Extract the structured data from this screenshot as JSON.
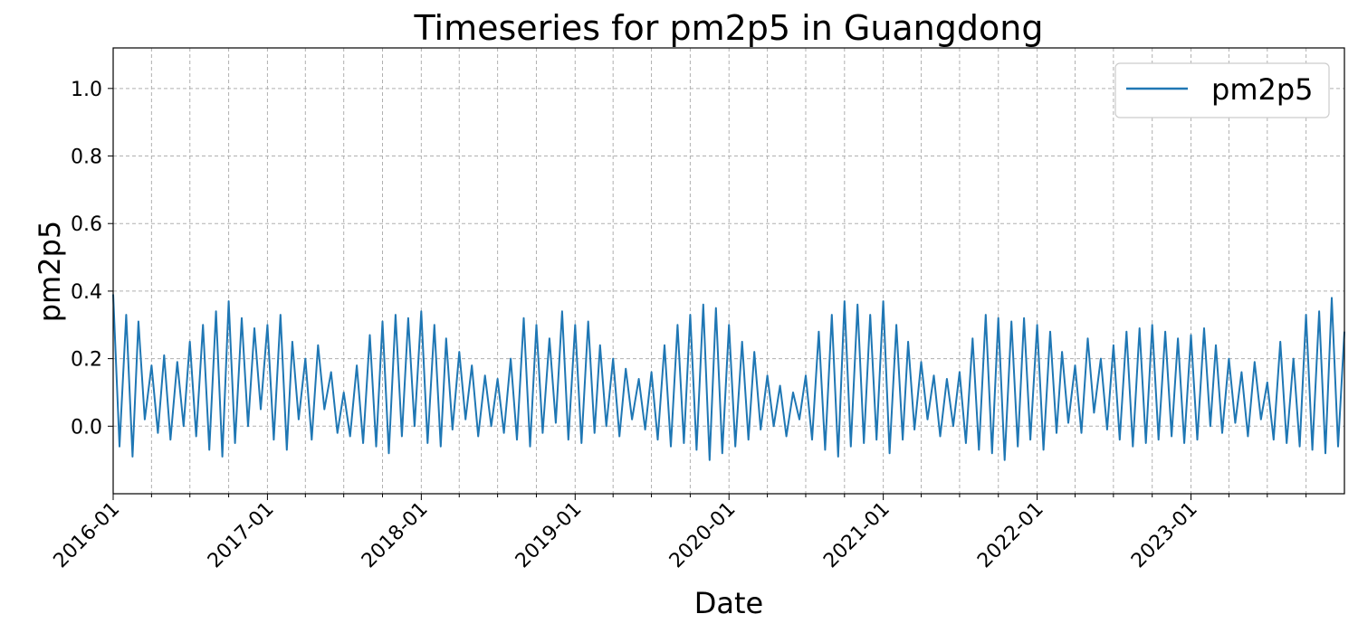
{
  "chart_data": {
    "type": "line",
    "title": "Timeseries for pm2p5 in Guangdong",
    "xlabel": "Date",
    "ylabel": "pm2p5",
    "xlim": [
      "2016-01-01",
      "2023-12-31"
    ],
    "ylim": [
      -0.2,
      1.12
    ],
    "x_ticks": [
      "2016-01",
      "2017-01",
      "2018-01",
      "2019-01",
      "2020-01",
      "2021-01",
      "2022-01",
      "2023-01"
    ],
    "y_ticks": [
      "0.0",
      "0.2",
      "0.4",
      "0.6",
      "0.8",
      "1.0"
    ],
    "y_tick_values": [
      0.0,
      0.2,
      0.4,
      0.6,
      0.8,
      1.0
    ],
    "grid": true,
    "legend": {
      "placement": "top-right",
      "entries": [
        "pm2p5"
      ]
    },
    "colors": {
      "series": "#1f77b4",
      "grid": "#b0b0b0",
      "axes": "#000000"
    },
    "series": [
      {
        "name": "pm2p5",
        "x": [
          "2016-01-01",
          "2016-01-16",
          "2016-02-01",
          "2016-02-16",
          "2016-03-01",
          "2016-03-16",
          "2016-04-01",
          "2016-04-16",
          "2016-05-01",
          "2016-05-16",
          "2016-06-01",
          "2016-06-16",
          "2016-07-01",
          "2016-07-16",
          "2016-08-01",
          "2016-08-16",
          "2016-09-01",
          "2016-09-16",
          "2016-10-01",
          "2016-10-16",
          "2016-11-01",
          "2016-11-16",
          "2016-12-01",
          "2016-12-16",
          "2017-01-01",
          "2017-01-16",
          "2017-02-01",
          "2017-02-16",
          "2017-03-01",
          "2017-03-16",
          "2017-04-01",
          "2017-04-16",
          "2017-05-01",
          "2017-05-16",
          "2017-06-01",
          "2017-06-16",
          "2017-07-01",
          "2017-07-16",
          "2017-08-01",
          "2017-08-16",
          "2017-09-01",
          "2017-09-16",
          "2017-10-01",
          "2017-10-16",
          "2017-11-01",
          "2017-11-16",
          "2017-12-01",
          "2017-12-16",
          "2018-01-01",
          "2018-01-16",
          "2018-02-01",
          "2018-02-16",
          "2018-03-01",
          "2018-03-16",
          "2018-04-01",
          "2018-04-16",
          "2018-05-01",
          "2018-05-16",
          "2018-06-01",
          "2018-06-16",
          "2018-07-01",
          "2018-07-16",
          "2018-08-01",
          "2018-08-16",
          "2018-09-01",
          "2018-09-16",
          "2018-10-01",
          "2018-10-16",
          "2018-11-01",
          "2018-11-16",
          "2018-12-01",
          "2018-12-16",
          "2019-01-01",
          "2019-01-16",
          "2019-02-01",
          "2019-02-16",
          "2019-03-01",
          "2019-03-16",
          "2019-04-01",
          "2019-04-16",
          "2019-05-01",
          "2019-05-16",
          "2019-06-01",
          "2019-06-16",
          "2019-07-01",
          "2019-07-16",
          "2019-08-01",
          "2019-08-16",
          "2019-09-01",
          "2019-09-16",
          "2019-10-01",
          "2019-10-16",
          "2019-11-01",
          "2019-11-16",
          "2019-12-01",
          "2019-12-16",
          "2020-01-01",
          "2020-01-16",
          "2020-02-01",
          "2020-02-16",
          "2020-03-01",
          "2020-03-16",
          "2020-04-01",
          "2020-04-16",
          "2020-05-01",
          "2020-05-16",
          "2020-06-01",
          "2020-06-16",
          "2020-07-01",
          "2020-07-16",
          "2020-08-01",
          "2020-08-16",
          "2020-09-01",
          "2020-09-16",
          "2020-10-01",
          "2020-10-16",
          "2020-11-01",
          "2020-11-16",
          "2020-12-01",
          "2020-12-16",
          "2021-01-01",
          "2021-01-16",
          "2021-02-01",
          "2021-02-16",
          "2021-03-01",
          "2021-03-16",
          "2021-04-01",
          "2021-04-16",
          "2021-05-01",
          "2021-05-16",
          "2021-06-01",
          "2021-06-16",
          "2021-07-01",
          "2021-07-16",
          "2021-08-01",
          "2021-08-16",
          "2021-09-01",
          "2021-09-16",
          "2021-10-01",
          "2021-10-16",
          "2021-11-01",
          "2021-11-16",
          "2021-12-01",
          "2021-12-16",
          "2022-01-01",
          "2022-01-16",
          "2022-02-01",
          "2022-02-16",
          "2022-03-01",
          "2022-03-16",
          "2022-04-01",
          "2022-04-16",
          "2022-05-01",
          "2022-05-16",
          "2022-06-01",
          "2022-06-16",
          "2022-07-01",
          "2022-07-16",
          "2022-08-01",
          "2022-08-16",
          "2022-09-01",
          "2022-09-16",
          "2022-10-01",
          "2022-10-16",
          "2022-11-01",
          "2022-11-16",
          "2022-12-01",
          "2022-12-16",
          "2023-01-01",
          "2023-01-16",
          "2023-02-01",
          "2023-02-16",
          "2023-03-01",
          "2023-03-16",
          "2023-04-01",
          "2023-04-16",
          "2023-05-01",
          "2023-05-16",
          "2023-06-01",
          "2023-06-16",
          "2023-07-01",
          "2023-07-16",
          "2023-08-01",
          "2023-08-16",
          "2023-09-01",
          "2023-09-16",
          "2023-10-01",
          "2023-10-16",
          "2023-11-01",
          "2023-11-16",
          "2023-12-01",
          "2023-12-16",
          "2023-12-31"
        ],
        "y": [
          0.39,
          -0.06,
          0.33,
          -0.09,
          0.31,
          0.02,
          0.18,
          -0.02,
          0.21,
          -0.04,
          0.19,
          0.0,
          0.25,
          -0.03,
          0.3,
          -0.07,
          0.34,
          -0.09,
          0.37,
          -0.05,
          0.32,
          0.0,
          0.29,
          0.05,
          0.3,
          -0.04,
          0.33,
          -0.07,
          0.25,
          0.02,
          0.2,
          -0.04,
          0.24,
          0.05,
          0.16,
          -0.02,
          0.1,
          -0.03,
          0.18,
          -0.05,
          0.27,
          -0.06,
          0.31,
          -0.08,
          0.33,
          -0.03,
          0.32,
          0.0,
          0.34,
          -0.05,
          0.3,
          -0.06,
          0.26,
          -0.01,
          0.22,
          0.02,
          0.18,
          -0.03,
          0.15,
          0.0,
          0.14,
          -0.02,
          0.2,
          -0.04,
          0.32,
          -0.06,
          0.3,
          -0.02,
          0.26,
          0.01,
          0.34,
          -0.04,
          0.3,
          -0.05,
          0.31,
          -0.02,
          0.24,
          0.0,
          0.2,
          -0.03,
          0.17,
          0.02,
          0.14,
          -0.01,
          0.16,
          -0.04,
          0.24,
          -0.06,
          0.3,
          -0.05,
          0.33,
          -0.07,
          0.36,
          -0.1,
          0.35,
          -0.08,
          0.3,
          -0.06,
          0.25,
          -0.04,
          0.22,
          -0.01,
          0.15,
          0.0,
          0.12,
          -0.03,
          0.1,
          0.02,
          0.15,
          -0.04,
          0.28,
          -0.07,
          0.33,
          -0.09,
          0.37,
          -0.06,
          0.36,
          -0.05,
          0.33,
          -0.04,
          0.37,
          -0.08,
          0.3,
          -0.04,
          0.25,
          -0.01,
          0.19,
          0.02,
          0.15,
          -0.03,
          0.14,
          0.0,
          0.16,
          -0.05,
          0.26,
          -0.07,
          0.33,
          -0.08,
          0.32,
          -0.1,
          0.31,
          -0.06,
          0.32,
          -0.04,
          0.3,
          -0.07,
          0.28,
          -0.02,
          0.22,
          0.01,
          0.18,
          -0.02,
          0.26,
          0.04,
          0.2,
          -0.01,
          0.24,
          -0.04,
          0.28,
          -0.06,
          0.29,
          -0.05,
          0.3,
          -0.04,
          0.28,
          -0.03,
          0.26,
          -0.05,
          0.27,
          -0.04,
          0.29,
          0.0,
          0.24,
          -0.02,
          0.2,
          0.01,
          0.16,
          -0.03,
          0.19,
          0.02,
          0.13,
          -0.04,
          0.25,
          -0.05,
          0.2,
          -0.06,
          0.33,
          -0.07,
          0.34,
          -0.08,
          0.38,
          -0.06,
          0.28
        ]
      }
    ]
  }
}
